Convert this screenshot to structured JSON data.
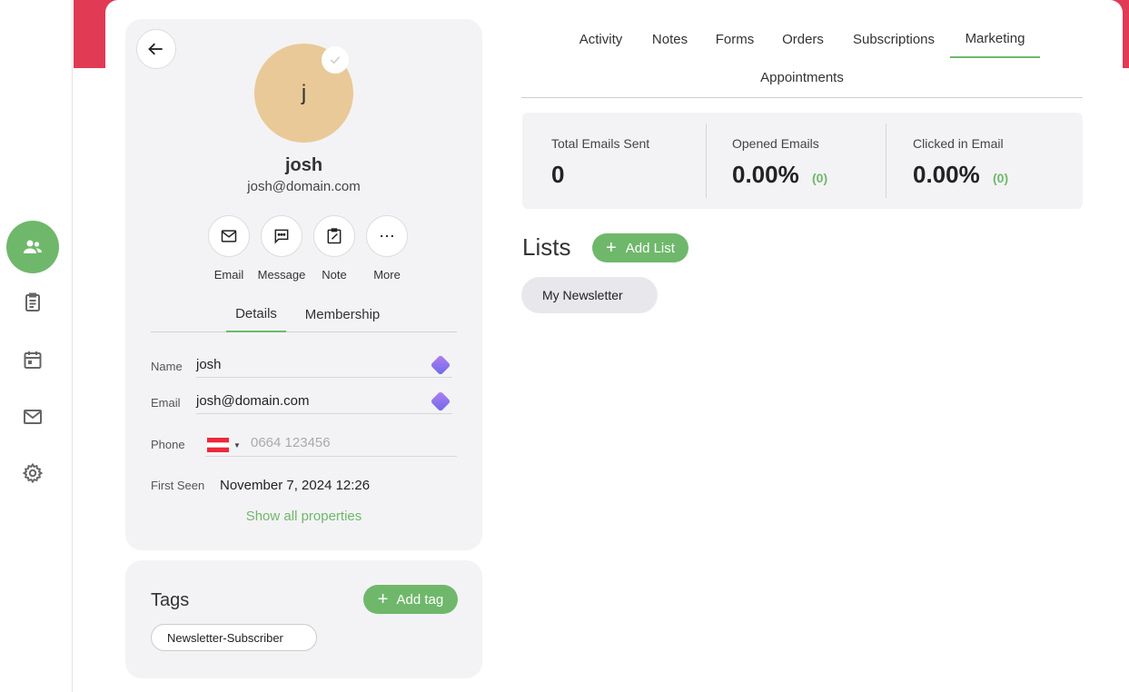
{
  "colors": {
    "accent": "#6fb86b",
    "banner": "#e03a55",
    "avatar_bg": "#e9c997",
    "panel_bg": "#f3f3f5"
  },
  "sidebar": {
    "items": [
      {
        "icon": "contacts-icon",
        "active": true
      },
      {
        "icon": "clipboard-icon",
        "active": false
      },
      {
        "icon": "calendar-icon",
        "active": false
      },
      {
        "icon": "mail-icon",
        "active": false
      },
      {
        "icon": "gear-icon",
        "active": false
      }
    ]
  },
  "profile": {
    "avatar_letter": "j",
    "name": "josh",
    "email": "josh@domain.com",
    "actions": [
      {
        "label": "Email",
        "icon": "envelope-icon"
      },
      {
        "label": "Message",
        "icon": "chat-icon"
      },
      {
        "label": "Note",
        "icon": "note-icon"
      },
      {
        "label": "More",
        "icon": "more-icon"
      }
    ],
    "tabs": [
      {
        "label": "Details",
        "active": true
      },
      {
        "label": "Membership",
        "active": false
      }
    ],
    "fields": {
      "name_label": "Name",
      "name_value": "josh",
      "email_label": "Email",
      "email_value": "josh@domain.com",
      "phone_label": "Phone",
      "phone_placeholder": "0664 123456",
      "first_seen_label": "First Seen",
      "first_seen_value": "November 7, 2024 12:26"
    },
    "show_all": "Show all properties"
  },
  "tags": {
    "title": "Tags",
    "add_label": "Add tag",
    "items": [
      "Newsletter-Subscriber"
    ]
  },
  "tabs": [
    {
      "label": "Activity",
      "active": false
    },
    {
      "label": "Notes",
      "active": false
    },
    {
      "label": "Forms",
      "active": false
    },
    {
      "label": "Orders",
      "active": false
    },
    {
      "label": "Subscriptions",
      "active": false
    },
    {
      "label": "Marketing",
      "active": true
    },
    {
      "label": "Appointments",
      "active": false
    }
  ],
  "stats": [
    {
      "title": "Total Emails Sent",
      "value": "0",
      "count": ""
    },
    {
      "title": "Opened Emails",
      "value": "0.00%",
      "count": "(0)"
    },
    {
      "title": "Clicked in Email",
      "value": "0.00%",
      "count": "(0)"
    }
  ],
  "lists": {
    "title": "Lists",
    "add_label": "Add List",
    "items": [
      "My Newsletter"
    ]
  }
}
